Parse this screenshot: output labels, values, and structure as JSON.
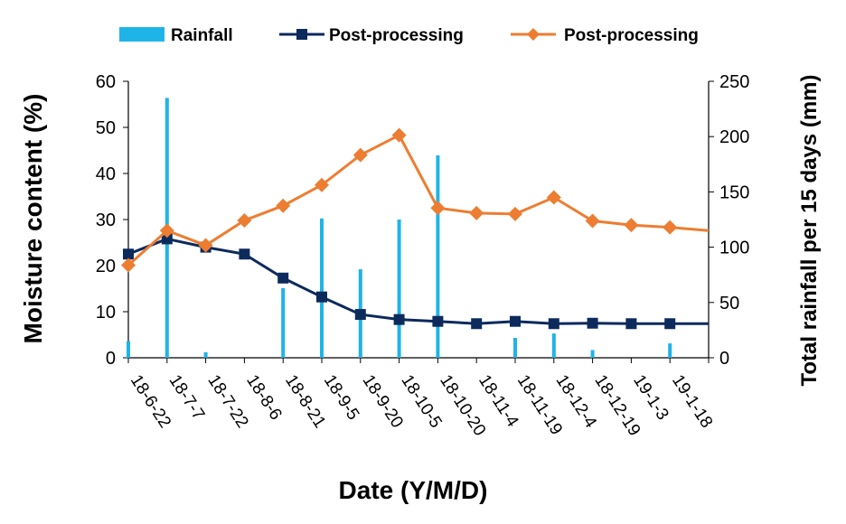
{
  "chart_data": {
    "type": "line",
    "categories": [
      "18-6-22",
      "18-7-7",
      "18-7-22",
      "18-8-6",
      "18-8-21",
      "18-9-5",
      "18-9-20",
      "18-10-5",
      "18-10-20",
      "18-11-4",
      "18-11-19",
      "18-12-4",
      "18-12-19",
      "19-1-3",
      "19-1-18"
    ],
    "xlabel": "Date (Y/M/D)",
    "ylabel": "Moisture content (%)",
    "y2label": "Total rainfall per 15 days (mm)",
    "ylim": [
      0,
      60
    ],
    "y2lim": [
      0,
      250
    ],
    "yticks": [
      0,
      10,
      20,
      30,
      40,
      50,
      60
    ],
    "y2ticks": [
      0,
      50,
      100,
      150,
      200,
      250
    ],
    "legend_position": "top",
    "series": [
      {
        "name": "Rainfall",
        "kind": "bar",
        "axis": "right",
        "color": "#1fb4e8",
        "x": [
          0,
          1,
          2,
          4,
          5,
          6,
          7,
          8,
          10,
          11,
          12,
          14
        ],
        "values": [
          15,
          235,
          5,
          63,
          126,
          80,
          125,
          183,
          18,
          22,
          7,
          13
        ]
      },
      {
        "name": "Post-processing",
        "kind": "line",
        "axis": "left",
        "color": "#0d2a5c",
        "marker": "square",
        "x": [
          0,
          1,
          2,
          3,
          4,
          5,
          6,
          7,
          8,
          9,
          10,
          11,
          12,
          13,
          14,
          15
        ],
        "values": [
          22.5,
          25.8,
          24,
          22.5,
          17.3,
          13.2,
          9.4,
          8.3,
          7.9,
          7.4,
          7.9,
          7.4,
          7.5,
          7.4,
          7.4,
          7.4
        ]
      },
      {
        "name": "Post-processing",
        "kind": "line",
        "axis": "left",
        "color": "#ed7d31",
        "marker": "diamond",
        "x": [
          0,
          1,
          2,
          3,
          4,
          5,
          6,
          7,
          8,
          9,
          10,
          11,
          12,
          13,
          14,
          15
        ],
        "values": [
          20.1,
          27.6,
          24.4,
          29.8,
          33,
          37.5,
          44,
          48.3,
          32.5,
          31.4,
          31.2,
          34.8,
          29.7,
          28.8,
          28.3,
          27.6
        ]
      }
    ]
  }
}
